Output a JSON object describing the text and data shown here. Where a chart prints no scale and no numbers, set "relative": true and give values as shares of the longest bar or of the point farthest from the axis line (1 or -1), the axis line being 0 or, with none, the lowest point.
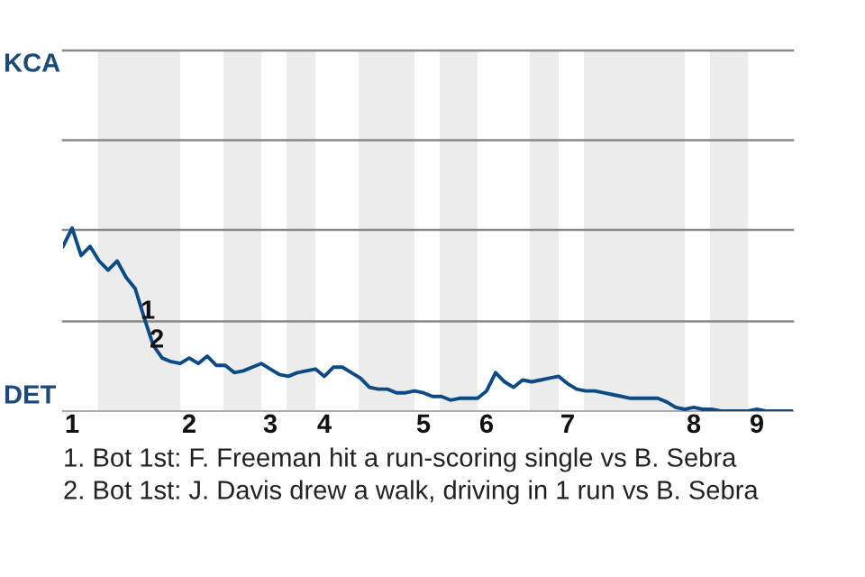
{
  "chart_data": {
    "type": "line",
    "relative": true,
    "categories": [
      null,
      "1",
      null,
      null,
      null,
      null,
      null,
      null,
      null,
      null,
      null,
      null,
      null,
      null,
      "2",
      null,
      null,
      null,
      null,
      null,
      null,
      null,
      null,
      "3",
      null,
      null,
      null,
      null,
      null,
      "4",
      null,
      null,
      null,
      null,
      null,
      null,
      null,
      null,
      null,
      null,
      "5",
      null,
      null,
      null,
      null,
      null,
      null,
      "6",
      null,
      null,
      null,
      null,
      null,
      null,
      null,
      null,
      "7",
      null,
      null,
      null,
      null,
      null,
      null,
      null,
      null,
      null,
      null,
      null,
      null,
      null,
      "8",
      null,
      null,
      null,
      null,
      null,
      null,
      "9",
      null,
      null,
      null,
      null
    ],
    "series": [
      {
        "color": "#0b4a85",
        "values": [
          0.9,
          1,
          0.85,
          0.9,
          0.82,
          0.77,
          0.82,
          0.73,
          0.67,
          0.51,
          0.36,
          0.29,
          0.27,
          0.26,
          0.29,
          0.26,
          0.3,
          0.25,
          0.25,
          0.21,
          0.22,
          0.24,
          0.26,
          0.23,
          0.2,
          0.19,
          0.21,
          0.22,
          0.23,
          0.19,
          0.24,
          0.24,
          0.21,
          0.18,
          0.13,
          0.12,
          0.12,
          0.1,
          0.1,
          0.11,
          0.1,
          0.08,
          0.08,
          0.06,
          0.07,
          0.07,
          0.07,
          0.11,
          0.21,
          0.16,
          0.13,
          0.17,
          0.16,
          0.17,
          0.18,
          0.19,
          0.15,
          0.12,
          0.11,
          0.11,
          0.1,
          0.09,
          0.08,
          0.07,
          0.07,
          0.07,
          0.07,
          0.05,
          0.02,
          0.01,
          0.02,
          0.01,
          0.01,
          0,
          0,
          0,
          0,
          0.01,
          0,
          0,
          0,
          0
        ]
      }
    ],
    "ref_lines": [
      {
        "axis": "y",
        "value": 0.49,
        "color": "#888888"
      },
      {
        "axis": "y",
        "value": 0.99,
        "color": "#888888"
      },
      {
        "axis": "y",
        "value": 1.48,
        "color": "#888888"
      },
      {
        "axis": "y",
        "value": 1.97,
        "color": "#888888"
      }
    ],
    "annotations": [
      "KCA",
      "DET",
      "1",
      "2",
      "1. Bot 1st: F. Freeman hit a run-scoring single vs B. Sebra",
      "2. Bot 1st: J. Davis drew a walk, driving in 1 run vs B. Sebra"
    ]
  }
}
